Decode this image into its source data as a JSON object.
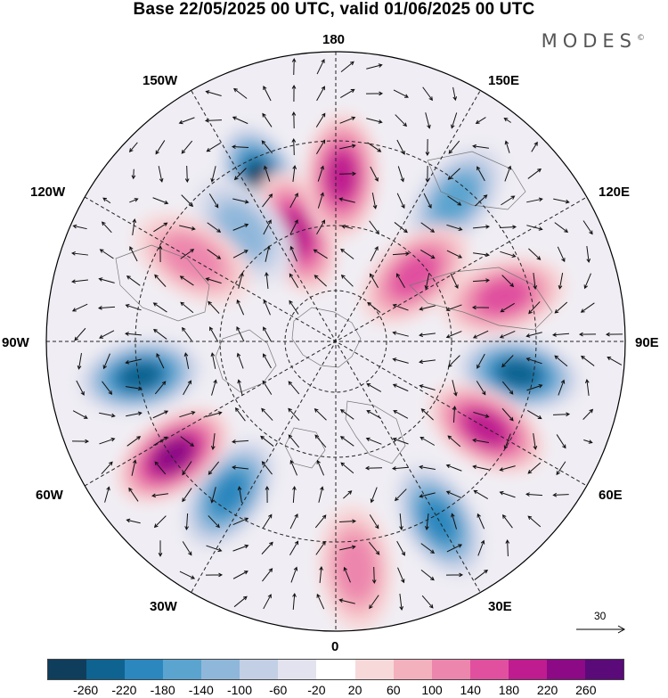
{
  "title": "Base 22/05/2025 00 UTC, valid 01/06/2025 00 UTC",
  "logo": "MODES",
  "logo_mark": "©",
  "longitude_labels": {
    "top": "180",
    "top_left": "150W",
    "top_right": "150E",
    "upper_left": "120W",
    "upper_right": "120E",
    "left": "90W",
    "right": "90E",
    "lower_left": "60W",
    "lower_right": "60E",
    "bottom_left": "30W",
    "bottom_right": "30E",
    "bottom": "0"
  },
  "reference_vector": "30",
  "colorbar": {
    "colors": [
      "#0f3d5c",
      "#0e6390",
      "#2b87be",
      "#5ba4cf",
      "#8fb7da",
      "#c3cfe5",
      "#e3e3ef",
      "#ffffff",
      "#f7d9da",
      "#f3b0bd",
      "#ed86ad",
      "#e0509f",
      "#be1c8f",
      "#8c0a86",
      "#5b0a7a"
    ],
    "tick_labels": [
      "-260",
      "-220",
      "-180",
      "-140",
      "-100",
      "-60",
      "-20",
      "20",
      "60",
      "100",
      "140",
      "180",
      "220",
      "260"
    ]
  },
  "anomaly_centers": [
    {
      "lon": -155,
      "lat": 48,
      "value": -260
    },
    {
      "lon": -160,
      "lat": 62,
      "value": 200
    },
    {
      "lon": -140,
      "lat": 55,
      "value": -120
    },
    {
      "lon": -120,
      "lat": 50,
      "value": 120
    },
    {
      "lon": 178,
      "lat": 50,
      "value": 180
    },
    {
      "lon": 140,
      "lat": 45,
      "value": -160
    },
    {
      "lon": 105,
      "lat": 48,
      "value": 160
    },
    {
      "lon": 130,
      "lat": 65,
      "value": 140
    },
    {
      "lon": 80,
      "lat": 45,
      "value": -240
    },
    {
      "lon": 60,
      "lat": 48,
      "value": 200
    },
    {
      "lon": 30,
      "lat": 40,
      "value": -180
    },
    {
      "lon": 5,
      "lat": 35,
      "value": 120
    },
    {
      "lon": -35,
      "lat": 45,
      "value": -180
    },
    {
      "lon": -55,
      "lat": 42,
      "value": 220
    },
    {
      "lon": -80,
      "lat": 42,
      "value": -240
    }
  ]
}
